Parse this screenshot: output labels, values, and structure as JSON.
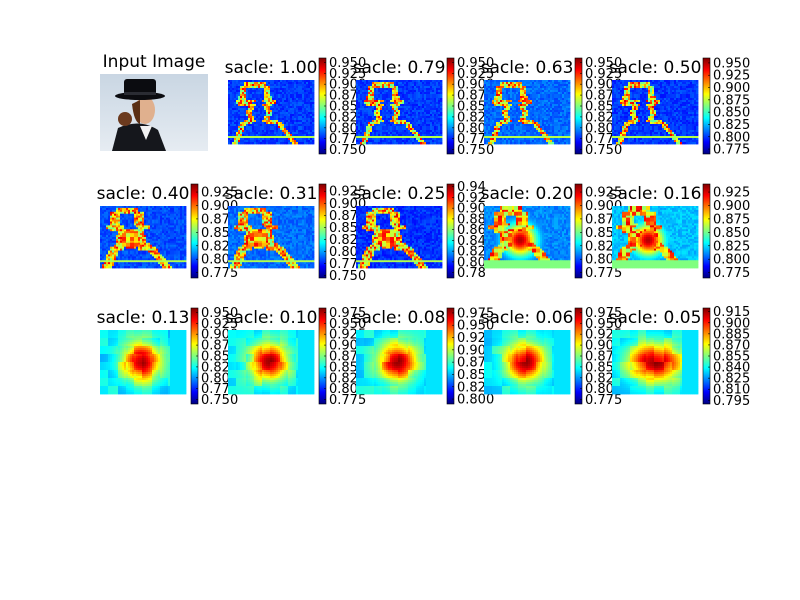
{
  "chart_data": {
    "type": "heatmap",
    "colormap": "jet",
    "layout": "3x5 grid of panels, first panel is the input photograph",
    "input_panel": {
      "title": "Input Image",
      "description_icon": "photo-woman-in-top-hat"
    },
    "panels": [
      {
        "title": "sacle: 1.00",
        "colorbar_ticks": [
          "0.950",
          "0.925",
          "0.900",
          "0.875",
          "0.850",
          "0.825",
          "0.800",
          "0.775",
          "0.750"
        ],
        "range": [
          0.74,
          0.96
        ],
        "base": 0.78,
        "pattern": "edges"
      },
      {
        "title": "sacle: 0.79",
        "colorbar_ticks": [
          "0.950",
          "0.925",
          "0.900",
          "0.875",
          "0.850",
          "0.825",
          "0.800",
          "0.775",
          "0.750"
        ],
        "range": [
          0.74,
          0.96
        ],
        "base": 0.78,
        "pattern": "edges"
      },
      {
        "title": "sacle: 0.63",
        "colorbar_ticks": [
          "0.950",
          "0.925",
          "0.900",
          "0.875",
          "0.850",
          "0.825",
          "0.800",
          "0.775",
          "0.750"
        ],
        "range": [
          0.74,
          0.96
        ],
        "base": 0.79,
        "pattern": "edges"
      },
      {
        "title": "sacle: 0.50",
        "colorbar_ticks": [
          "0.950",
          "0.925",
          "0.900",
          "0.875",
          "0.850",
          "0.825",
          "0.800",
          "0.775"
        ],
        "range": [
          0.765,
          0.96
        ],
        "base": 0.8,
        "pattern": "edges"
      },
      {
        "title": "sacle: 0.40",
        "colorbar_ticks": [
          "0.925",
          "0.900",
          "0.875",
          "0.850",
          "0.825",
          "0.800",
          "0.775"
        ],
        "range": [
          0.765,
          0.94
        ],
        "base": 0.8,
        "pattern": "edges-coarse"
      },
      {
        "title": "sacle: 0.31",
        "colorbar_ticks": [
          "0.925",
          "0.900",
          "0.875",
          "0.850",
          "0.825",
          "0.800",
          "0.775",
          "0.750"
        ],
        "range": [
          0.745,
          0.94
        ],
        "base": 0.79,
        "pattern": "edges-coarse"
      },
      {
        "title": "sacle: 0.25",
        "colorbar_ticks": [
          "0.94",
          "0.92",
          "0.90",
          "0.88",
          "0.86",
          "0.84",
          "0.82",
          "0.80",
          "0.78"
        ],
        "range": [
          0.77,
          0.945
        ],
        "base": 0.8,
        "pattern": "edges-coarse"
      },
      {
        "title": "sacle: 0.20",
        "colorbar_ticks": [
          "0.925",
          "0.900",
          "0.875",
          "0.850",
          "0.825",
          "0.800",
          "0.775"
        ],
        "range": [
          0.765,
          0.94
        ],
        "base": 0.81,
        "pattern": "blob-edges"
      },
      {
        "title": "sacle: 0.16",
        "colorbar_ticks": [
          "0.925",
          "0.900",
          "0.875",
          "0.850",
          "0.825",
          "0.800",
          "0.775"
        ],
        "range": [
          0.765,
          0.94
        ],
        "base": 0.82,
        "pattern": "blob-edges"
      },
      {
        "title": "sacle: 0.13",
        "colorbar_ticks": [
          "0.950",
          "0.925",
          "0.900",
          "0.875",
          "0.850",
          "0.825",
          "0.800",
          "0.775",
          "0.750"
        ],
        "range": [
          0.74,
          0.96
        ],
        "base": 0.84,
        "pattern": "blob"
      },
      {
        "title": "sacle: 0.10",
        "colorbar_ticks": [
          "0.975",
          "0.950",
          "0.925",
          "0.900",
          "0.875",
          "0.850",
          "0.825",
          "0.800",
          "0.775"
        ],
        "range": [
          0.765,
          0.985
        ],
        "base": 0.84,
        "pattern": "blob"
      },
      {
        "title": "sacle: 0.08",
        "colorbar_ticks": [
          "0.975",
          "0.950",
          "0.925",
          "0.900",
          "0.875",
          "0.850",
          "0.825",
          "0.800"
        ],
        "range": [
          0.79,
          0.985
        ],
        "base": 0.85,
        "pattern": "blob"
      },
      {
        "title": "sacle: 0.06",
        "colorbar_ticks": [
          "0.975",
          "0.950",
          "0.925",
          "0.900",
          "0.875",
          "0.850",
          "0.825",
          "0.800",
          "0.775"
        ],
        "range": [
          0.765,
          0.985
        ],
        "base": 0.86,
        "pattern": "blob"
      },
      {
        "title": "sacle: 0.05",
        "colorbar_ticks": [
          "0.915",
          "0.900",
          "0.885",
          "0.870",
          "0.855",
          "0.840",
          "0.825",
          "0.810",
          "0.795"
        ],
        "range": [
          0.79,
          0.92
        ],
        "base": 0.86,
        "pattern": "blob-wide"
      }
    ]
  }
}
